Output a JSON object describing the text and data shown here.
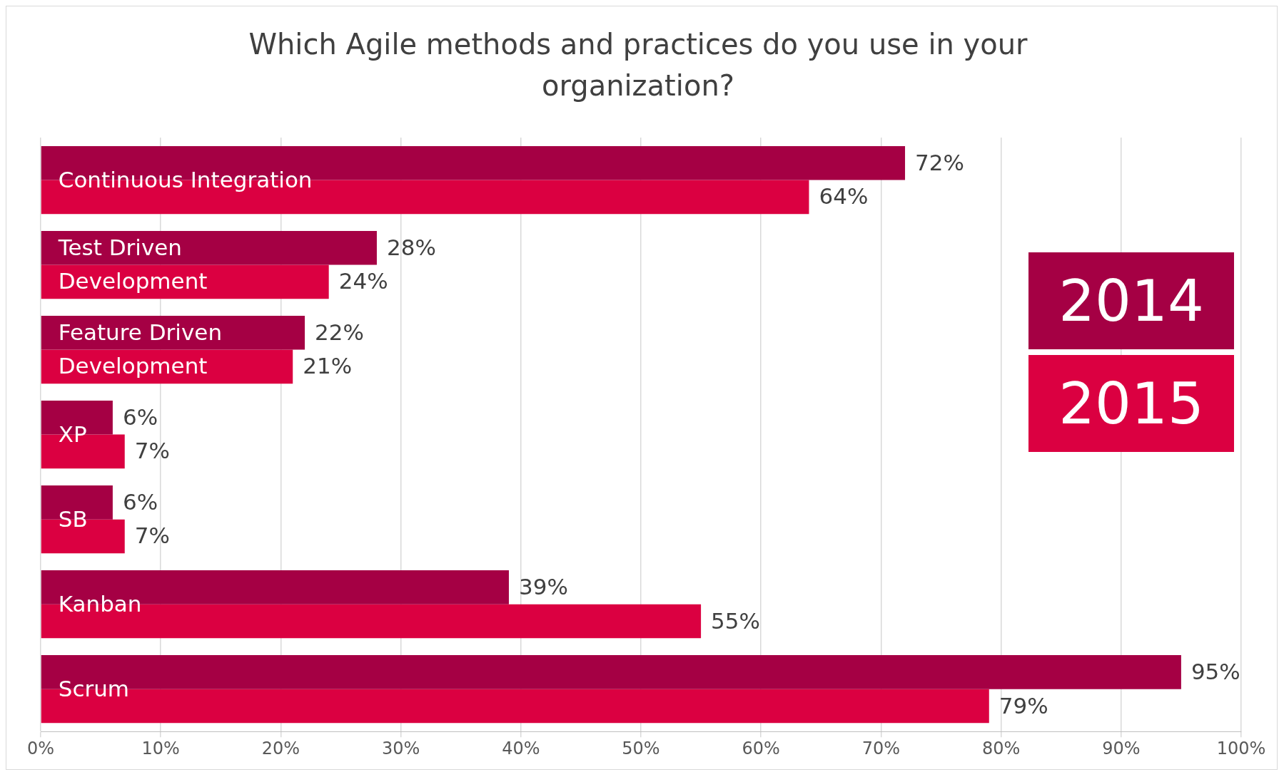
{
  "chart_data": {
    "type": "bar",
    "orientation": "horizontal",
    "title": "Which Agile methods and practices do you use in your organization?",
    "categories": [
      "Continuous Integration",
      "Test Driven Development",
      "Feature Driven Development",
      "XP",
      "SB",
      "Kanban",
      "Scrum"
    ],
    "series": [
      {
        "name": "2014",
        "color": "#a50044",
        "values": [
          72,
          28,
          22,
          6,
          6,
          39,
          95
        ],
        "value_labels": [
          "72%",
          "28%",
          "22%",
          "6%",
          "6%",
          "39%",
          "95%"
        ]
      },
      {
        "name": "2015",
        "color": "#db0041",
        "values": [
          64,
          24,
          21,
          7,
          7,
          55,
          79
        ],
        "value_labels": [
          "64%",
          "24%",
          "21%",
          "7%",
          "7%",
          "55%",
          "79%"
        ]
      }
    ],
    "xlim": [
      0,
      100
    ],
    "xticks": [
      {
        "value": 0,
        "label": "0%"
      },
      {
        "value": 10,
        "label": "10%"
      },
      {
        "value": 20,
        "label": "20%"
      },
      {
        "value": 30,
        "label": "30%"
      },
      {
        "value": 40,
        "label": "40%"
      },
      {
        "value": 50,
        "label": "50%"
      },
      {
        "value": 60,
        "label": "60%"
      },
      {
        "value": 70,
        "label": "70%"
      },
      {
        "value": 80,
        "label": "80%"
      },
      {
        "value": 90,
        "label": "90%"
      },
      {
        "value": 100,
        "label": "100%"
      }
    ],
    "grid": "x",
    "legend": "right",
    "tick_labels": "x"
  }
}
